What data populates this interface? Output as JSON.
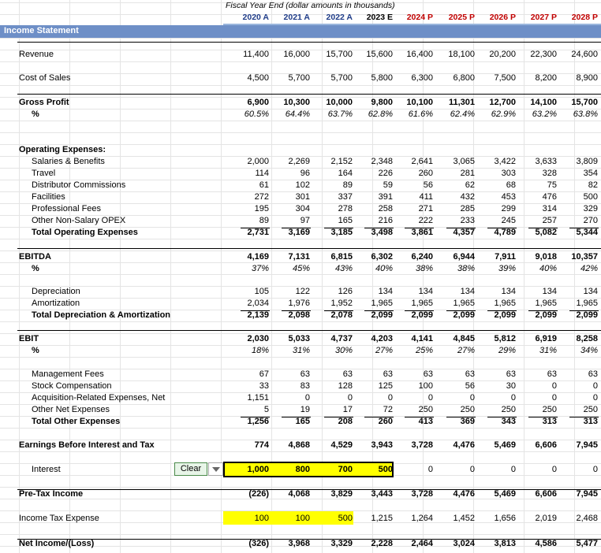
{
  "header": {
    "fiscal_note": "Fiscal Year End (dollar amounts in thousands)",
    "years": [
      {
        "label": "2020 A",
        "type": "a"
      },
      {
        "label": "2021 A",
        "type": "a"
      },
      {
        "label": "2022 A",
        "type": "a"
      },
      {
        "label": "2023 E",
        "type": "e"
      },
      {
        "label": "2024 P",
        "type": "p"
      },
      {
        "label": "2025 P",
        "type": "p"
      },
      {
        "label": "2026 P",
        "type": "p"
      },
      {
        "label": "2027 P",
        "type": "p"
      },
      {
        "label": "2028 P",
        "type": "p"
      }
    ]
  },
  "sheet_title": "Income Statement",
  "interest_control": {
    "label": "Clear"
  },
  "colors": {
    "title_bar": "#6e8fc7",
    "header_band": "#9bb7dd",
    "input_highlight": "#ffff00",
    "actual": "#1f3c88",
    "projected": "#c00000"
  },
  "rows": [
    {
      "id": "revenue",
      "label": "Revenue",
      "style": "normal",
      "values": [
        "11,400",
        "16,000",
        "15,700",
        "15,600",
        "16,400",
        "18,100",
        "20,200",
        "22,300",
        "24,600"
      ]
    },
    {
      "id": "cogs",
      "label": "Cost of Sales",
      "style": "normal",
      "values": [
        "4,500",
        "5,700",
        "5,700",
        "5,800",
        "6,300",
        "6,800",
        "7,500",
        "8,200",
        "8,900"
      ]
    },
    {
      "id": "gross_profit",
      "label": "Gross Profit",
      "style": "bold",
      "values": [
        "6,900",
        "10,300",
        "10,000",
        "9,800",
        "10,100",
        "11,301",
        "12,700",
        "14,100",
        "15,700"
      ]
    },
    {
      "id": "gross_margin",
      "label": "%",
      "style": "pct",
      "values": [
        "60.5%",
        "64.4%",
        "63.7%",
        "62.8%",
        "61.6%",
        "62.4%",
        "62.9%",
        "63.2%",
        "63.8%"
      ]
    },
    {
      "id": "opex_head",
      "label": "Operating Expenses:",
      "style": "bold",
      "values": []
    },
    {
      "id": "salaries",
      "label": "Salaries & Benefits",
      "style": "indent",
      "values": [
        "2,000",
        "2,269",
        "2,152",
        "2,348",
        "2,641",
        "3,065",
        "3,422",
        "3,633",
        "3,809"
      ]
    },
    {
      "id": "travel",
      "label": "Travel",
      "style": "indent",
      "values": [
        "114",
        "96",
        "164",
        "226",
        "260",
        "281",
        "303",
        "328",
        "354"
      ]
    },
    {
      "id": "distributor",
      "label": "Distributor Commissions",
      "style": "indent",
      "values": [
        "61",
        "102",
        "89",
        "59",
        "56",
        "62",
        "68",
        "75",
        "82"
      ]
    },
    {
      "id": "facilities",
      "label": "Facilities",
      "style": "indent",
      "values": [
        "272",
        "301",
        "337",
        "391",
        "411",
        "432",
        "453",
        "476",
        "500"
      ]
    },
    {
      "id": "professional",
      "label": "Professional Fees",
      "style": "indent",
      "values": [
        "195",
        "304",
        "278",
        "258",
        "271",
        "285",
        "299",
        "314",
        "329"
      ]
    },
    {
      "id": "other_opex",
      "label": "Other Non-Salary OPEX",
      "style": "indent",
      "values": [
        "89",
        "97",
        "165",
        "216",
        "222",
        "233",
        "245",
        "257",
        "270"
      ]
    },
    {
      "id": "total_opex",
      "label": "Total Operating Expenses",
      "style": "indent-bold",
      "values": [
        "2,731",
        "3,169",
        "3,185",
        "3,498",
        "3,861",
        "4,357",
        "4,789",
        "5,082",
        "5,344"
      ]
    },
    {
      "id": "ebitda",
      "label": "EBITDA",
      "style": "bold",
      "values": [
        "4,169",
        "7,131",
        "6,815",
        "6,302",
        "6,240",
        "6,944",
        "7,911",
        "9,018",
        "10,357"
      ]
    },
    {
      "id": "ebitda_margin",
      "label": "%",
      "style": "pct",
      "values": [
        "37%",
        "45%",
        "43%",
        "40%",
        "38%",
        "38%",
        "39%",
        "40%",
        "42%"
      ]
    },
    {
      "id": "depreciation",
      "label": "Depreciation",
      "style": "indent",
      "values": [
        "105",
        "122",
        "126",
        "134",
        "134",
        "134",
        "134",
        "134",
        "134"
      ]
    },
    {
      "id": "amortization",
      "label": "Amortization",
      "style": "indent",
      "values": [
        "2,034",
        "1,976",
        "1,952",
        "1,965",
        "1,965",
        "1,965",
        "1,965",
        "1,965",
        "1,965"
      ]
    },
    {
      "id": "total_da",
      "label": "Total Depreciation & Amortization",
      "style": "indent-bold",
      "values": [
        "2,139",
        "2,098",
        "2,078",
        "2,099",
        "2,099",
        "2,099",
        "2,099",
        "2,099",
        "2,099"
      ]
    },
    {
      "id": "ebit",
      "label": "EBIT",
      "style": "bold",
      "values": [
        "2,030",
        "5,033",
        "4,737",
        "4,203",
        "4,141",
        "4,845",
        "5,812",
        "6,919",
        "8,258"
      ]
    },
    {
      "id": "ebit_margin",
      "label": "%",
      "style": "pct",
      "values": [
        "18%",
        "31%",
        "30%",
        "27%",
        "25%",
        "27%",
        "29%",
        "31%",
        "34%"
      ]
    },
    {
      "id": "mgmt_fees",
      "label": "Management Fees",
      "style": "indent",
      "values": [
        "67",
        "63",
        "63",
        "63",
        "63",
        "63",
        "63",
        "63",
        "63"
      ]
    },
    {
      "id": "stock_comp",
      "label": "Stock Compensation",
      "style": "indent",
      "values": [
        "33",
        "83",
        "128",
        "125",
        "100",
        "56",
        "30",
        "0",
        "0"
      ]
    },
    {
      "id": "acq_exp",
      "label": "Acquisition-Related Expenses, Net",
      "style": "indent",
      "values": [
        "1,151",
        "0",
        "0",
        "0",
        "0",
        "0",
        "0",
        "0",
        "0"
      ]
    },
    {
      "id": "other_net",
      "label": "Other Net Expenses",
      "style": "indent",
      "values": [
        "5",
        "19",
        "17",
        "72",
        "250",
        "250",
        "250",
        "250",
        "250"
      ]
    },
    {
      "id": "total_other",
      "label": "Total Other Expenses",
      "style": "indent-bold",
      "values": [
        "1,256",
        "165",
        "208",
        "260",
        "413",
        "369",
        "343",
        "313",
        "313"
      ]
    },
    {
      "id": "ebt_pre",
      "label": "Earnings Before Interest and Tax",
      "style": "bold",
      "values": [
        "774",
        "4,868",
        "4,529",
        "3,943",
        "3,728",
        "4,476",
        "5,469",
        "6,606",
        "7,945"
      ]
    },
    {
      "id": "interest",
      "label": "Interest",
      "style": "normal",
      "values": [
        "1,000",
        "800",
        "700",
        "500",
        "0",
        "0",
        "0",
        "0",
        "0"
      ]
    },
    {
      "id": "pretax",
      "label": "Pre-Tax Income",
      "style": "bold",
      "values": [
        "(226)",
        "4,068",
        "3,829",
        "3,443",
        "3,728",
        "4,476",
        "5,469",
        "6,606",
        "7,945"
      ]
    },
    {
      "id": "tax",
      "label": "Income Tax Expense",
      "style": "normal",
      "values": [
        "100",
        "100",
        "500",
        "1,215",
        "1,264",
        "1,452",
        "1,656",
        "2,019",
        "2,468"
      ]
    },
    {
      "id": "net_income",
      "label": "Net Income/(Loss)",
      "style": "bold",
      "values": [
        "(326)",
        "3,968",
        "3,329",
        "2,228",
        "2,464",
        "3,024",
        "3,813",
        "4,586",
        "5,477"
      ]
    }
  ]
}
